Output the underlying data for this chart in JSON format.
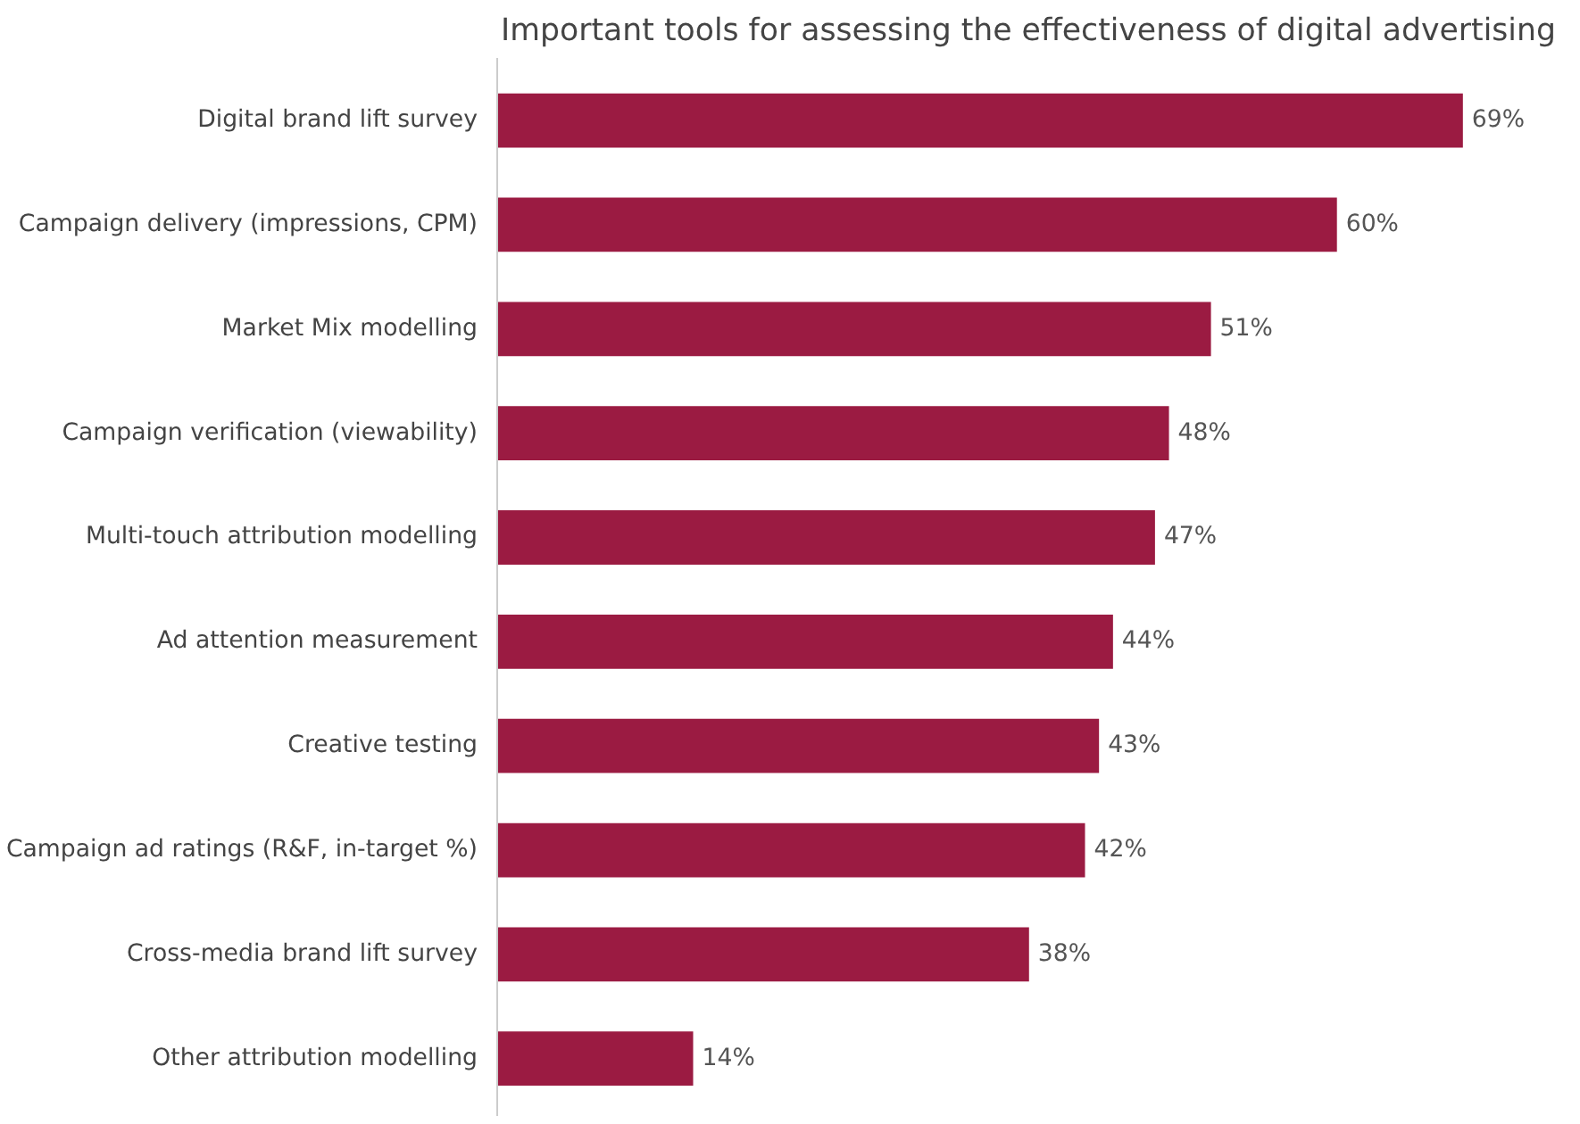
{
  "chart_data": {
    "type": "bar",
    "orientation": "horizontal",
    "title": "Important tools for assessing the effectiveness of digital advertising",
    "categories": [
      "Digital brand lift survey",
      "Campaign delivery (impressions, CPM)",
      "Market Mix modelling",
      "Campaign verification (viewability)",
      "Multi-touch attribution modelling",
      "Ad attention measurement",
      "Creative testing",
      "Campaign ad ratings (R&F, in-target %)",
      "Cross-media brand lift survey",
      "Other attribution modelling"
    ],
    "values": [
      69,
      60,
      51,
      48,
      47,
      44,
      43,
      42,
      38,
      14
    ],
    "value_labels": [
      "69%",
      "60%",
      "51%",
      "48%",
      "47%",
      "44%",
      "43%",
      "42%",
      "38%",
      "14%"
    ],
    "color": "#9b1b42",
    "grid": false
  }
}
